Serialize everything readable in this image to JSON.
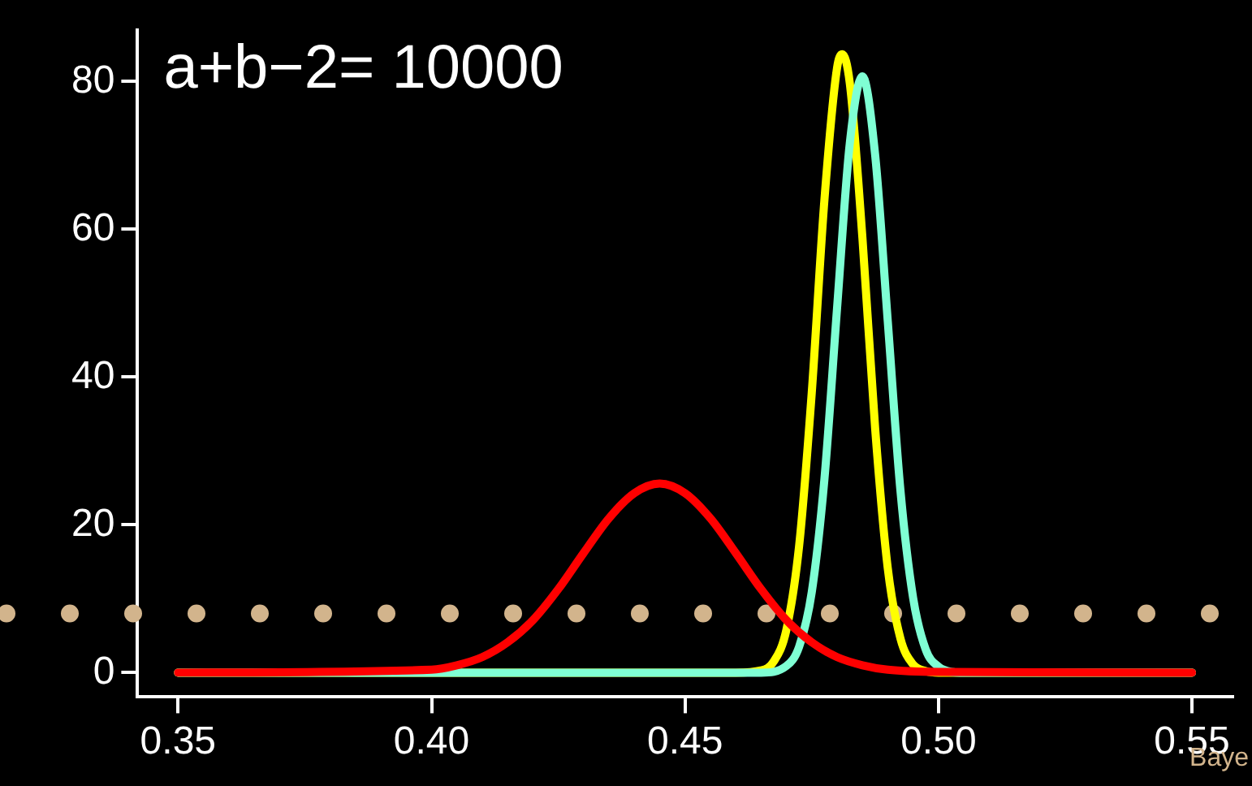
{
  "chart_data": {
    "type": "line",
    "annotations": [
      "a+b−2= 10000",
      "Baye"
    ],
    "marker": "none",
    "line_style": "solid",
    "xlim": [
      0.342,
      0.558
    ],
    "ylim": [
      -3.3,
      87
    ],
    "xticks": [
      {
        "value": 0.35,
        "label": "0.35"
      },
      {
        "value": 0.4,
        "label": "0.40"
      },
      {
        "value": 0.45,
        "label": "0.45"
      },
      {
        "value": 0.5,
        "label": "0.50"
      },
      {
        "value": 0.55,
        "label": "0.55"
      }
    ],
    "yticks": [
      0,
      20,
      40,
      60,
      80
    ],
    "ref_lines": [
      {
        "axis": "y",
        "value": 8,
        "color": "#d2b48c",
        "line_style": "dotted"
      }
    ],
    "series": [
      {
        "color": "#ff0000",
        "x": [
          0.35,
          0.4,
          0.405,
          0.41,
          0.415,
          0.42,
          0.425,
          0.43,
          0.435,
          0.44,
          0.445,
          0.45,
          0.455,
          0.46,
          0.465,
          0.47,
          0.475,
          0.48,
          0.485,
          0.49,
          0.5,
          0.55
        ],
        "values": [
          0,
          0.4,
          1.0,
          2.1,
          4.1,
          7.1,
          11.3,
          16.2,
          20.9,
          24.3,
          25.6,
          24.3,
          20.9,
          16.2,
          11.3,
          7.1,
          4.1,
          2.1,
          1.0,
          0.4,
          0.1,
          0
        ]
      },
      {
        "color": "#7fffd4",
        "x": [
          0.35,
          0.465,
          0.47,
          0.4725,
          0.475,
          0.4775,
          0.48,
          0.4825,
          0.485,
          0.4875,
          0.49,
          0.4925,
          0.495,
          0.4975,
          0.5,
          0.5025,
          0.505,
          0.55
        ],
        "values": [
          0,
          0,
          0.9,
          3.5,
          10.9,
          26.2,
          49.4,
          71.6,
          80.7,
          70.1,
          47.5,
          24.6,
          10.1,
          3.1,
          0.8,
          0.1,
          0,
          0
        ]
      },
      {
        "color": "#ffff00",
        "x": [
          0.35,
          0.46,
          0.465,
          0.4675,
          0.47,
          0.4725,
          0.475,
          0.4775,
          0.48,
          0.481,
          0.4825,
          0.485,
          0.4875,
          0.49,
          0.4925,
          0.495,
          0.4975,
          0.5,
          0.55
        ],
        "values": [
          0,
          0,
          0.3,
          1.5,
          5.8,
          17.1,
          37.9,
          64.0,
          81.9,
          83.7,
          79.8,
          58.8,
          33.1,
          14.1,
          4.6,
          1.1,
          0.2,
          0,
          0
        ]
      }
    ]
  }
}
